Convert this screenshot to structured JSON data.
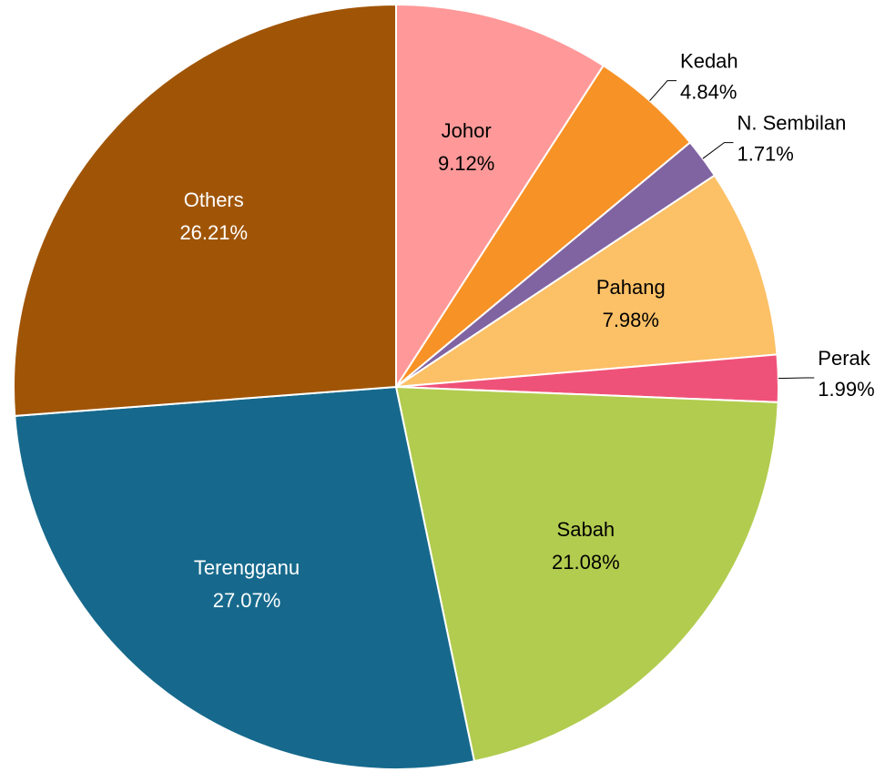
{
  "chart_data": {
    "type": "pie",
    "categories": [
      "Johor",
      "Kedah",
      "N. Sembilan",
      "Pahang",
      "Perak",
      "Sabah",
      "Terengganu",
      "Others"
    ],
    "values": [
      9.12,
      4.84,
      1.71,
      7.98,
      1.99,
      21.08,
      27.07,
      26.21
    ],
    "value_labels": [
      "9.12%",
      "4.84%",
      "1.71%",
      "7.98%",
      "1.99%",
      "21.08%",
      "27.07%",
      "26.21%"
    ],
    "colors": [
      "#ff9999",
      "#f79226",
      "#8064a2",
      "#fcc066",
      "#ef5278",
      "#b2cc4f",
      "#16698c",
      "#a05506"
    ],
    "label_colors": [
      "#000000",
      "#000000",
      "#000000",
      "#000000",
      "#000000",
      "#000000",
      "#ffffff",
      "#ffffff"
    ]
  }
}
